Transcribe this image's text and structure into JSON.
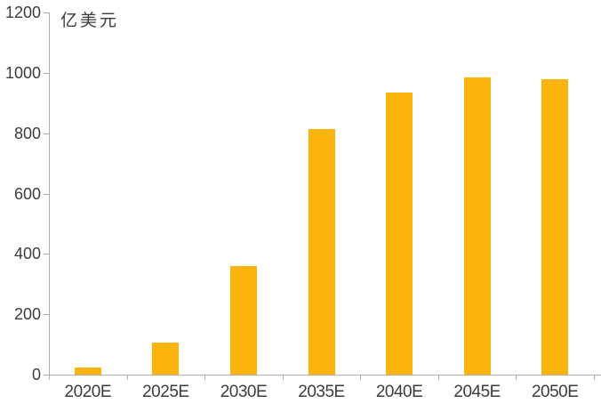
{
  "chart_data": {
    "type": "bar",
    "title": "",
    "unit": "亿美元",
    "categories": [
      "2020E",
      "2025E",
      "2030E",
      "2035E",
      "2040E",
      "2045E",
      "2050E"
    ],
    "values": [
      25,
      105,
      360,
      815,
      935,
      985,
      978
    ],
    "xlabel": "",
    "ylabel": "亿美元",
    "ylim": [
      0,
      1200
    ],
    "yticks": [
      0,
      200,
      400,
      600,
      800,
      1000,
      1200
    ],
    "grid": false,
    "legend": false,
    "colors": {
      "bar": "#FBB40D",
      "axis": "#ADADAD",
      "text": "#3C3C3C",
      "background": "#FFFFFF"
    }
  }
}
